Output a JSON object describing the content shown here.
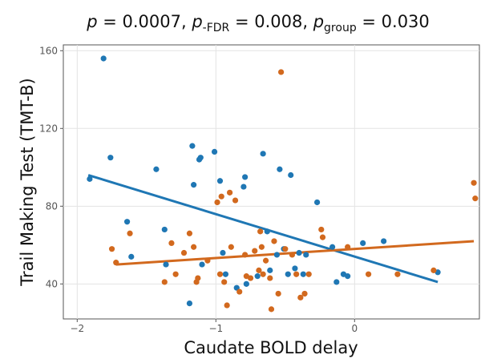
{
  "title": {
    "p_symbol": "p",
    "p_value": " = 0.0007, ",
    "pfdr_symbol": "p",
    "pfdr_sub": "-FDR",
    "pfdr_value": " = 0.008, ",
    "pgroup_symbol": "p",
    "pgroup_sub": "group",
    "pgroup_value": " = 0.030"
  },
  "chart_data": {
    "type": "scatter",
    "xlabel": "Caudate BOLD delay",
    "ylabel": "Trail Making Test  (TMT-B)",
    "xlim": [
      -2.1,
      0.9
    ],
    "ylim": [
      22,
      163
    ],
    "xticks": [
      -2,
      -1,
      0
    ],
    "xtick_labels": [
      "−2",
      "−1",
      "0"
    ],
    "yticks": [
      40,
      80,
      120,
      160
    ],
    "ytick_labels": [
      "40",
      "80",
      "120",
      "160"
    ],
    "grid": true,
    "legend": "none",
    "series": [
      {
        "color": "#1f77b4",
        "points": [
          [
            -1.91,
            94
          ],
          [
            -1.81,
            156
          ],
          [
            -1.76,
            105
          ],
          [
            -1.64,
            72
          ],
          [
            -1.61,
            54
          ],
          [
            -1.43,
            99
          ],
          [
            -1.37,
            68
          ],
          [
            -1.36,
            50
          ],
          [
            -1.19,
            30
          ],
          [
            -1.17,
            111
          ],
          [
            -1.16,
            91
          ],
          [
            -1.12,
            104
          ],
          [
            -1.11,
            105
          ],
          [
            -1.1,
            50
          ],
          [
            -1.01,
            108
          ],
          [
            -0.97,
            93
          ],
          [
            -0.95,
            56
          ],
          [
            -0.93,
            45
          ],
          [
            -0.85,
            38
          ],
          [
            -0.8,
            90
          ],
          [
            -0.79,
            95
          ],
          [
            -0.78,
            40
          ],
          [
            -0.7,
            44
          ],
          [
            -0.66,
            107
          ],
          [
            -0.63,
            67
          ],
          [
            -0.61,
            47
          ],
          [
            -0.56,
            55
          ],
          [
            -0.54,
            99
          ],
          [
            -0.51,
            58
          ],
          [
            -0.48,
            45
          ],
          [
            -0.46,
            96
          ],
          [
            -0.43,
            48
          ],
          [
            -0.4,
            56
          ],
          [
            -0.37,
            45
          ],
          [
            -0.35,
            55
          ],
          [
            -0.27,
            82
          ],
          [
            -0.16,
            59
          ],
          [
            -0.13,
            41
          ],
          [
            -0.08,
            45
          ],
          [
            -0.05,
            44
          ],
          [
            0.06,
            61
          ],
          [
            0.21,
            62
          ],
          [
            0.6,
            46
          ]
        ],
        "fit": [
          [
            -1.92,
            96
          ],
          [
            0.6,
            41
          ]
        ]
      },
      {
        "color": "#d2691e",
        "points": [
          [
            -1.75,
            58
          ],
          [
            -1.72,
            51
          ],
          [
            -1.62,
            66
          ],
          [
            -1.37,
            41
          ],
          [
            -1.32,
            61
          ],
          [
            -1.29,
            45
          ],
          [
            -1.23,
            56
          ],
          [
            -1.19,
            66
          ],
          [
            -1.16,
            59
          ],
          [
            -1.14,
            41
          ],
          [
            -1.13,
            43
          ],
          [
            -1.06,
            52
          ],
          [
            -0.99,
            82
          ],
          [
            -0.97,
            45
          ],
          [
            -0.96,
            85
          ],
          [
            -0.94,
            41
          ],
          [
            -0.92,
            29
          ],
          [
            -0.9,
            87
          ],
          [
            -0.89,
            59
          ],
          [
            -0.86,
            83
          ],
          [
            -0.83,
            36
          ],
          [
            -0.79,
            55
          ],
          [
            -0.78,
            44
          ],
          [
            -0.75,
            43
          ],
          [
            -0.72,
            57
          ],
          [
            -0.69,
            47
          ],
          [
            -0.68,
            67
          ],
          [
            -0.67,
            59
          ],
          [
            -0.66,
            45
          ],
          [
            -0.64,
            52
          ],
          [
            -0.61,
            43
          ],
          [
            -0.6,
            27
          ],
          [
            -0.58,
            62
          ],
          [
            -0.55,
            35
          ],
          [
            -0.53,
            149
          ],
          [
            -0.5,
            58
          ],
          [
            -0.45,
            55
          ],
          [
            -0.42,
            45
          ],
          [
            -0.39,
            33
          ],
          [
            -0.36,
            35
          ],
          [
            -0.33,
            45
          ],
          [
            -0.24,
            68
          ],
          [
            -0.23,
            64
          ],
          [
            -0.05,
            59
          ],
          [
            0.1,
            45
          ],
          [
            0.31,
            45
          ],
          [
            0.57,
            47
          ],
          [
            0.86,
            92
          ],
          [
            0.87,
            84
          ]
        ],
        "fit": [
          [
            -1.72,
            50
          ],
          [
            0.86,
            62
          ]
        ]
      }
    ]
  }
}
